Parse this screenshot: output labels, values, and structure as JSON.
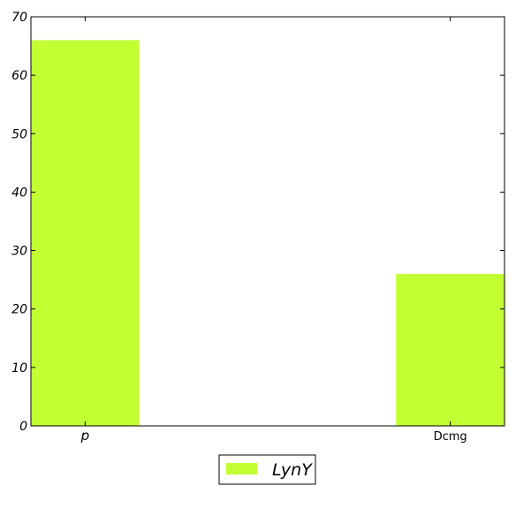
{
  "chart_data": {
    "type": "bar",
    "categories": [
      "p",
      "Dcmg"
    ],
    "series": [
      {
        "name": "LynY",
        "values": [
          66,
          26
        ],
        "color": "#c2ff33"
      }
    ],
    "ylim": [
      0,
      70
    ],
    "yticks": [
      0,
      10,
      20,
      30,
      40,
      50,
      60,
      70
    ],
    "grid": false,
    "legend_position": "bottom-center"
  }
}
